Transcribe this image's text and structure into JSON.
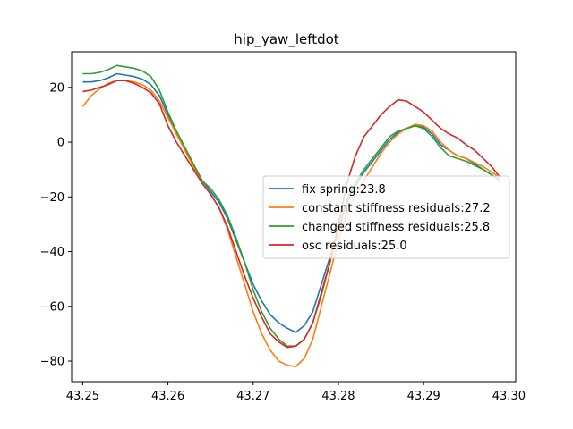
{
  "chart_data": {
    "type": "line",
    "title": "hip_yaw_leftdot",
    "xlabel": "",
    "ylabel": "",
    "xlim": [
      43.2487,
      43.3008
    ],
    "ylim": [
      -87.5,
      33
    ],
    "xticks": [
      43.25,
      43.26,
      43.27,
      43.28,
      43.29,
      43.3
    ],
    "xtick_labels": [
      "43.25",
      "43.26",
      "43.27",
      "43.28",
      "43.29",
      "43.30"
    ],
    "yticks": [
      -80,
      -60,
      -40,
      -20,
      0,
      20
    ],
    "ytick_labels": [
      "−80",
      "−60",
      "−40",
      "−20",
      "0",
      "20"
    ],
    "grid": false,
    "legend_position": "center-right",
    "x": [
      43.25,
      43.251,
      43.252,
      43.253,
      43.254,
      43.255,
      43.256,
      43.257,
      43.258,
      43.259,
      43.26,
      43.261,
      43.262,
      43.263,
      43.264,
      43.265,
      43.266,
      43.267,
      43.268,
      43.269,
      43.27,
      43.271,
      43.272,
      43.273,
      43.274,
      43.275,
      43.276,
      43.277,
      43.278,
      43.279,
      43.28,
      43.281,
      43.282,
      43.283,
      43.284,
      43.285,
      43.286,
      43.287,
      43.288,
      43.289,
      43.29,
      43.291,
      43.292,
      43.293,
      43.294,
      43.295,
      43.296,
      43.297,
      43.298,
      43.299
    ],
    "series": [
      {
        "name": "fix spring:23.8",
        "color": "#1f77b4",
        "values": [
          22,
          22,
          22.5,
          23.5,
          25,
          24.5,
          24,
          23,
          21,
          17,
          10,
          4,
          -2,
          -8,
          -14,
          -18,
          -22,
          -28,
          -36,
          -44,
          -52,
          -58,
          -63,
          -66,
          -68,
          -69.5,
          -67,
          -62,
          -52,
          -42,
          -32,
          -22,
          -16,
          -11,
          -7,
          -3,
          1,
          3.5,
          5,
          6,
          5.5,
          3,
          -1,
          -3,
          -5,
          -6,
          -8,
          -10,
          -12,
          -14
        ]
      },
      {
        "name": "constant stiffness residuals:27.2",
        "color": "#ff7f0e",
        "values": [
          13,
          17,
          19.5,
          21.5,
          22.5,
          22.5,
          22,
          21,
          19,
          15,
          9,
          3,
          -3,
          -9,
          -15,
          -19,
          -24,
          -32,
          -42,
          -52,
          -62,
          -70,
          -76,
          -80,
          -81.5,
          -82,
          -79,
          -72,
          -60,
          -48,
          -36,
          -26,
          -19,
          -14,
          -9,
          -4,
          0,
          3,
          5,
          6.5,
          6,
          4,
          0,
          -3,
          -5,
          -6,
          -7.5,
          -9,
          -11,
          -13
        ]
      },
      {
        "name": "changed stiffness residuals:25.8",
        "color": "#2ca02c",
        "values": [
          25,
          25,
          25.5,
          26.5,
          28,
          27.5,
          27,
          26,
          24,
          19,
          11,
          4,
          -2,
          -8,
          -14,
          -17,
          -21,
          -27,
          -35,
          -44,
          -54,
          -62,
          -68,
          -72,
          -74.5,
          -74.5,
          -72,
          -66,
          -56,
          -44,
          -32,
          -21,
          -15,
          -10,
          -6,
          -2,
          2,
          4,
          5,
          6,
          5,
          2,
          -2,
          -5,
          -6,
          -7,
          -8.5,
          -10,
          -12,
          -14
        ]
      },
      {
        "name": "osc residuals:25.0",
        "color": "#d62728",
        "values": [
          18.5,
          19,
          20,
          21,
          22.5,
          22.5,
          21.5,
          20,
          18,
          14,
          6,
          0,
          -5,
          -10,
          -15,
          -19,
          -24,
          -31,
          -40,
          -49,
          -57,
          -64,
          -70,
          -73,
          -75,
          -74.5,
          -72,
          -66,
          -55,
          -44,
          -30,
          -15,
          -5,
          2,
          6,
          10,
          13,
          15.5,
          15,
          13,
          11,
          8,
          5,
          3,
          1.5,
          -1,
          -3,
          -6,
          -9,
          -13
        ]
      }
    ]
  }
}
